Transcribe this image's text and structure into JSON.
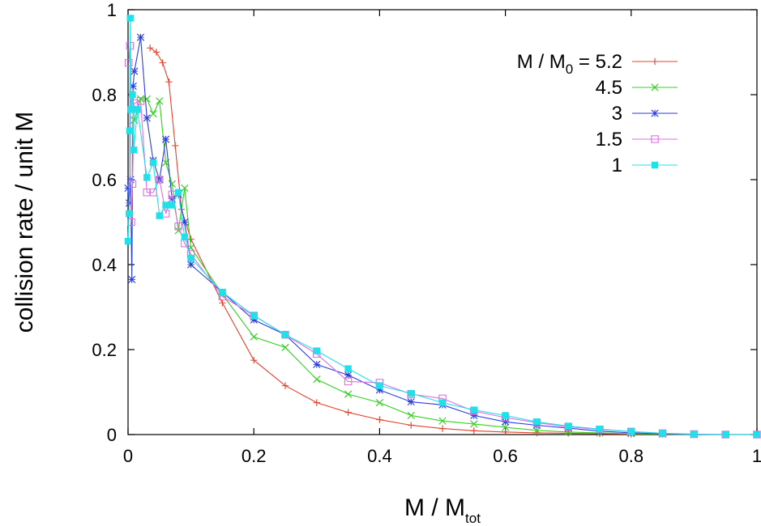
{
  "chart_data": {
    "type": "line",
    "xlabel": {
      "main": "M / M",
      "sub": "tot"
    },
    "ylabel": "collision rate / unit M",
    "xlim": [
      0,
      1
    ],
    "ylim": [
      0,
      1
    ],
    "xticks": [
      {
        "value": 0,
        "label": "0"
      },
      {
        "value": 0.2,
        "label": "0.2"
      },
      {
        "value": 0.4,
        "label": "0.4"
      },
      {
        "value": 0.6,
        "label": "0.6"
      },
      {
        "value": 0.8,
        "label": "0.8"
      },
      {
        "value": 1,
        "label": "1"
      }
    ],
    "yticks": [
      {
        "value": 0,
        "label": "0"
      },
      {
        "value": 0.2,
        "label": "0.2"
      },
      {
        "value": 0.4,
        "label": "0.4"
      },
      {
        "value": 0.6,
        "label": "0.6"
      },
      {
        "value": 0.8,
        "label": "0.8"
      },
      {
        "value": 1,
        "label": "1"
      }
    ],
    "grid": false,
    "legend": {
      "placement": "top-right",
      "prefix_main": "M / M",
      "prefix_sub": "0",
      "prefix_suffix": " = "
    },
    "series": [
      {
        "name": "5.2",
        "color": "#e8402a",
        "marker": "plus",
        "points": [
          [
            0.035,
            0.91
          ],
          [
            0.045,
            0.9
          ],
          [
            0.055,
            0.875
          ],
          [
            0.065,
            0.83
          ],
          [
            0.075,
            0.68
          ],
          [
            0.085,
            0.53
          ],
          [
            0.1,
            0.46
          ],
          [
            0.15,
            0.31
          ],
          [
            0.2,
            0.175
          ],
          [
            0.25,
            0.115
          ],
          [
            0.3,
            0.075
          ],
          [
            0.35,
            0.052
          ],
          [
            0.4,
            0.035
          ],
          [
            0.45,
            0.022
          ],
          [
            0.5,
            0.014
          ],
          [
            0.55,
            0.009
          ],
          [
            0.6,
            0.006
          ],
          [
            0.65,
            0.004
          ],
          [
            0.7,
            0.003
          ],
          [
            0.75,
            0.002
          ],
          [
            0.8,
            0.001
          ],
          [
            0.85,
            0.001
          ],
          [
            0.9,
            0.0
          ],
          [
            0.95,
            0.0
          ],
          [
            1.0,
            0.0
          ]
        ]
      },
      {
        "name": "4.5",
        "color": "#30d020",
        "marker": "x",
        "points": [
          [
            0.01,
            0.74
          ],
          [
            0.02,
            0.79
          ],
          [
            0.03,
            0.79
          ],
          [
            0.04,
            0.755
          ],
          [
            0.05,
            0.785
          ],
          [
            0.06,
            0.64
          ],
          [
            0.07,
            0.59
          ],
          [
            0.08,
            0.48
          ],
          [
            0.09,
            0.58
          ],
          [
            0.1,
            0.44
          ],
          [
            0.15,
            0.33
          ],
          [
            0.2,
            0.23
          ],
          [
            0.25,
            0.205
          ],
          [
            0.3,
            0.13
          ],
          [
            0.35,
            0.095
          ],
          [
            0.4,
            0.075
          ],
          [
            0.45,
            0.045
          ],
          [
            0.5,
            0.032
          ],
          [
            0.55,
            0.025
          ],
          [
            0.6,
            0.017
          ],
          [
            0.65,
            0.01
          ],
          [
            0.7,
            0.006
          ],
          [
            0.75,
            0.004
          ],
          [
            0.8,
            0.002
          ],
          [
            0.85,
            0.001
          ],
          [
            0.9,
            0.0
          ],
          [
            0.95,
            0.0
          ],
          [
            1.0,
            0.0
          ]
        ]
      },
      {
        "name": "3",
        "color": "#2a3ee0",
        "marker": "star",
        "points": [
          [
            0.0,
            0.58
          ],
          [
            0.002,
            0.545
          ],
          [
            0.004,
            0.6
          ],
          [
            0.006,
            0.365
          ],
          [
            0.008,
            0.82
          ],
          [
            0.01,
            0.855
          ],
          [
            0.02,
            0.935
          ],
          [
            0.03,
            0.745
          ],
          [
            0.04,
            0.645
          ],
          [
            0.05,
            0.6
          ],
          [
            0.06,
            0.695
          ],
          [
            0.07,
            0.555
          ],
          [
            0.08,
            0.565
          ],
          [
            0.09,
            0.5
          ],
          [
            0.1,
            0.4
          ],
          [
            0.15,
            0.335
          ],
          [
            0.2,
            0.27
          ],
          [
            0.25,
            0.235
          ],
          [
            0.3,
            0.165
          ],
          [
            0.35,
            0.14
          ],
          [
            0.4,
            0.105
          ],
          [
            0.45,
            0.077
          ],
          [
            0.5,
            0.07
          ],
          [
            0.55,
            0.045
          ],
          [
            0.6,
            0.03
          ],
          [
            0.65,
            0.022
          ],
          [
            0.7,
            0.015
          ],
          [
            0.75,
            0.008
          ],
          [
            0.8,
            0.004
          ],
          [
            0.85,
            0.002
          ],
          [
            0.9,
            0.0
          ],
          [
            0.95,
            0.0
          ],
          [
            1.0,
            0.0
          ]
        ]
      },
      {
        "name": "1.5",
        "color": "#e070e0",
        "marker": "open-square",
        "points": [
          [
            0.001,
            0.875
          ],
          [
            0.003,
            0.915
          ],
          [
            0.005,
            0.5
          ],
          [
            0.007,
            0.59
          ],
          [
            0.01,
            0.78
          ],
          [
            0.02,
            0.785
          ],
          [
            0.03,
            0.57
          ],
          [
            0.04,
            0.57
          ],
          [
            0.05,
            0.6
          ],
          [
            0.06,
            0.52
          ],
          [
            0.07,
            0.565
          ],
          [
            0.08,
            0.49
          ],
          [
            0.09,
            0.45
          ],
          [
            0.1,
            0.425
          ],
          [
            0.15,
            0.325
          ],
          [
            0.2,
            0.28
          ],
          [
            0.25,
            0.235
          ],
          [
            0.3,
            0.19
          ],
          [
            0.35,
            0.125
          ],
          [
            0.4,
            0.122
          ],
          [
            0.45,
            0.095
          ],
          [
            0.5,
            0.085
          ],
          [
            0.55,
            0.055
          ],
          [
            0.6,
            0.04
          ],
          [
            0.65,
            0.028
          ],
          [
            0.7,
            0.018
          ],
          [
            0.75,
            0.012
          ],
          [
            0.8,
            0.007
          ],
          [
            0.85,
            0.003
          ],
          [
            0.9,
            0.001
          ],
          [
            0.95,
            0.0
          ],
          [
            1.0,
            0.0
          ]
        ]
      },
      {
        "name": "1",
        "color": "#20e0e8",
        "marker": "filled-square",
        "points": [
          [
            0.0,
            0.455
          ],
          [
            0.0015,
            0.52
          ],
          [
            0.0025,
            0.715
          ],
          [
            0.0035,
            0.98
          ],
          [
            0.005,
            0.765
          ],
          [
            0.007,
            0.8
          ],
          [
            0.009,
            0.67
          ],
          [
            0.015,
            0.765
          ],
          [
            0.03,
            0.605
          ],
          [
            0.04,
            0.64
          ],
          [
            0.05,
            0.515
          ],
          [
            0.06,
            0.54
          ],
          [
            0.07,
            0.54
          ],
          [
            0.08,
            0.57
          ],
          [
            0.09,
            0.465
          ],
          [
            0.1,
            0.415
          ],
          [
            0.15,
            0.335
          ],
          [
            0.2,
            0.28
          ],
          [
            0.25,
            0.235
          ],
          [
            0.3,
            0.197
          ],
          [
            0.35,
            0.155
          ],
          [
            0.4,
            0.115
          ],
          [
            0.45,
            0.097
          ],
          [
            0.5,
            0.075
          ],
          [
            0.55,
            0.058
          ],
          [
            0.6,
            0.045
          ],
          [
            0.65,
            0.03
          ],
          [
            0.7,
            0.02
          ],
          [
            0.75,
            0.013
          ],
          [
            0.8,
            0.007
          ],
          [
            0.85,
            0.003
          ],
          [
            0.9,
            0.001
          ],
          [
            0.95,
            0.0
          ],
          [
            1.0,
            0.0
          ]
        ]
      }
    ]
  }
}
